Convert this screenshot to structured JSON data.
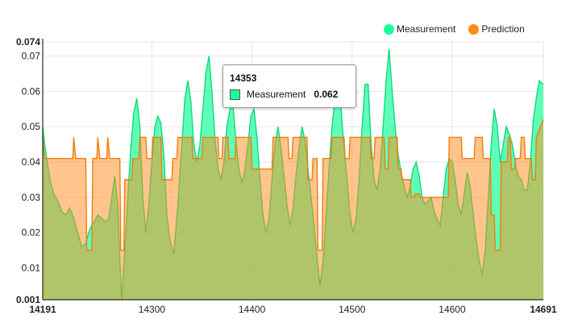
{
  "colors": {
    "measurement": "#1CFF9A",
    "prediction": "#FF8C1A",
    "grid": "#e6e6e6",
    "axis": "#000000"
  },
  "legend": {
    "measurement": "Measurement",
    "prediction": "Prediction"
  },
  "tooltip": {
    "title": "14353",
    "label": "Measurement",
    "value": "0.062"
  },
  "chart_data": {
    "type": "area",
    "xlim": [
      14191,
      14691
    ],
    "ylim": [
      0.001,
      0.074
    ],
    "x_ticks": [
      14191,
      14300,
      14400,
      14500,
      14600,
      14691
    ],
    "y_ticks": [
      0.001,
      0.01,
      0.02,
      0.03,
      0.04,
      0.05,
      0.06,
      0.07,
      0.074
    ],
    "y_tick_labels": [
      "0.001",
      "0.01",
      "0.02",
      "0.03",
      "0.04",
      "0.05",
      "0.06",
      "0.07",
      "0.074"
    ],
    "grid": true,
    "legend_position": "top-right",
    "series": [
      {
        "name": "Measurement",
        "points": [
          [
            14191,
            0.05
          ],
          [
            14193,
            0.045
          ],
          [
            14196,
            0.039
          ],
          [
            14199,
            0.034
          ],
          [
            14202,
            0.031
          ],
          [
            14206,
            0.029
          ],
          [
            14210,
            0.026
          ],
          [
            14214,
            0.025
          ],
          [
            14218,
            0.027
          ],
          [
            14222,
            0.024
          ],
          [
            14226,
            0.02
          ],
          [
            14230,
            0.016
          ],
          [
            14234,
            0.017
          ],
          [
            14238,
            0.021
          ],
          [
            14242,
            0.023
          ],
          [
            14246,
            0.025
          ],
          [
            14250,
            0.024
          ],
          [
            14254,
            0.023
          ],
          [
            14257,
            0.024
          ],
          [
            14260,
            0.03
          ],
          [
            14263,
            0.036
          ],
          [
            14266,
            0.028
          ],
          [
            14268,
            0.012
          ],
          [
            14270,
            0.001
          ],
          [
            14273,
            0.015
          ],
          [
            14276,
            0.03
          ],
          [
            14279,
            0.044
          ],
          [
            14282,
            0.054
          ],
          [
            14285,
            0.058
          ],
          [
            14288,
            0.05
          ],
          [
            14291,
            0.03
          ],
          [
            14294,
            0.02
          ],
          [
            14297,
            0.028
          ],
          [
            14300,
            0.04
          ],
          [
            14303,
            0.05
          ],
          [
            14306,
            0.053
          ],
          [
            14309,
            0.051
          ],
          [
            14312,
            0.042
          ],
          [
            14315,
            0.025
          ],
          [
            14318,
            0.018
          ],
          [
            14322,
            0.014
          ],
          [
            14326,
            0.028
          ],
          [
            14330,
            0.045
          ],
          [
            14333,
            0.058
          ],
          [
            14336,
            0.063
          ],
          [
            14339,
            0.057
          ],
          [
            14342,
            0.045
          ],
          [
            14345,
            0.04
          ],
          [
            14348,
            0.045
          ],
          [
            14351,
            0.055
          ],
          [
            14354,
            0.065
          ],
          [
            14357,
            0.07
          ],
          [
            14360,
            0.06
          ],
          [
            14363,
            0.047
          ],
          [
            14366,
            0.038
          ],
          [
            14369,
            0.035
          ],
          [
            14372,
            0.04
          ],
          [
            14375,
            0.05
          ],
          [
            14378,
            0.055
          ],
          [
            14381,
            0.056
          ],
          [
            14384,
            0.046
          ],
          [
            14387,
            0.038
          ],
          [
            14390,
            0.034
          ],
          [
            14393,
            0.038
          ],
          [
            14396,
            0.045
          ],
          [
            14399,
            0.053
          ],
          [
            14402,
            0.055
          ],
          [
            14405,
            0.047
          ],
          [
            14408,
            0.035
          ],
          [
            14411,
            0.025
          ],
          [
            14414,
            0.02
          ],
          [
            14417,
            0.024
          ],
          [
            14420,
            0.035
          ],
          [
            14423,
            0.045
          ],
          [
            14426,
            0.05
          ],
          [
            14429,
            0.044
          ],
          [
            14432,
            0.036
          ],
          [
            14435,
            0.028
          ],
          [
            14438,
            0.022
          ],
          [
            14441,
            0.027
          ],
          [
            14444,
            0.036
          ],
          [
            14447,
            0.044
          ],
          [
            14450,
            0.05
          ],
          [
            14453,
            0.046
          ],
          [
            14456,
            0.038
          ],
          [
            14459,
            0.03
          ],
          [
            14462,
            0.022
          ],
          [
            14465,
            0.013
          ],
          [
            14468,
            0.005
          ],
          [
            14471,
            0.012
          ],
          [
            14474,
            0.025
          ],
          [
            14477,
            0.038
          ],
          [
            14480,
            0.05
          ],
          [
            14483,
            0.058
          ],
          [
            14486,
            0.062
          ],
          [
            14489,
            0.055
          ],
          [
            14492,
            0.044
          ],
          [
            14495,
            0.035
          ],
          [
            14498,
            0.025
          ],
          [
            14501,
            0.02
          ],
          [
            14504,
            0.024
          ],
          [
            14507,
            0.035
          ],
          [
            14510,
            0.05
          ],
          [
            14513,
            0.062
          ],
          [
            14516,
            0.062
          ],
          [
            14519,
            0.045
          ],
          [
            14522,
            0.035
          ],
          [
            14525,
            0.032
          ],
          [
            14528,
            0.038
          ],
          [
            14531,
            0.05
          ],
          [
            14534,
            0.063
          ],
          [
            14537,
            0.072
          ],
          [
            14540,
            0.06
          ],
          [
            14543,
            0.05
          ],
          [
            14546,
            0.042
          ],
          [
            14549,
            0.037
          ],
          [
            14552,
            0.033
          ],
          [
            14555,
            0.03
          ],
          [
            14558,
            0.033
          ],
          [
            14561,
            0.038
          ],
          [
            14564,
            0.04
          ],
          [
            14567,
            0.036
          ],
          [
            14570,
            0.03
          ],
          [
            14573,
            0.028
          ],
          [
            14576,
            0.029
          ],
          [
            14579,
            0.03
          ],
          [
            14582,
            0.026
          ],
          [
            14585,
            0.024
          ],
          [
            14588,
            0.022
          ],
          [
            14591,
            0.03
          ],
          [
            14594,
            0.038
          ],
          [
            14597,
            0.041
          ],
          [
            14600,
            0.04
          ],
          [
            14603,
            0.035
          ],
          [
            14606,
            0.028
          ],
          [
            14609,
            0.025
          ],
          [
            14612,
            0.031
          ],
          [
            14615,
            0.037
          ],
          [
            14618,
            0.033
          ],
          [
            14621,
            0.025
          ],
          [
            14624,
            0.018
          ],
          [
            14627,
            0.012
          ],
          [
            14630,
            0.008
          ],
          [
            14633,
            0.015
          ],
          [
            14636,
            0.03
          ],
          [
            14639,
            0.045
          ],
          [
            14642,
            0.055
          ],
          [
            14645,
            0.05
          ],
          [
            14648,
            0.04
          ],
          [
            14651,
            0.045
          ],
          [
            14654,
            0.05
          ],
          [
            14657,
            0.048
          ],
          [
            14660,
            0.045
          ],
          [
            14663,
            0.04
          ],
          [
            14666,
            0.036
          ],
          [
            14669,
            0.035
          ],
          [
            14672,
            0.032
          ],
          [
            14675,
            0.032
          ],
          [
            14678,
            0.04
          ],
          [
            14681,
            0.052
          ],
          [
            14684,
            0.058
          ],
          [
            14687,
            0.063
          ],
          [
            14691,
            0.062
          ]
        ]
      },
      {
        "name": "Prediction",
        "points": [
          [
            14191,
            0.047
          ],
          [
            14193,
            0.041
          ],
          [
            14200,
            0.041
          ],
          [
            14221,
            0.041
          ],
          [
            14222,
            0.047
          ],
          [
            14224,
            0.041
          ],
          [
            14234,
            0.041
          ],
          [
            14235,
            0.015
          ],
          [
            14240,
            0.015
          ],
          [
            14241,
            0.041
          ],
          [
            14245,
            0.041
          ],
          [
            14246,
            0.047
          ],
          [
            14248,
            0.041
          ],
          [
            14255,
            0.041
          ],
          [
            14256,
            0.047
          ],
          [
            14258,
            0.041
          ],
          [
            14268,
            0.041
          ],
          [
            14269,
            0.015
          ],
          [
            14272,
            0.015
          ],
          [
            14273,
            0.035
          ],
          [
            14280,
            0.035
          ],
          [
            14281,
            0.041
          ],
          [
            14287,
            0.041
          ],
          [
            14288,
            0.047
          ],
          [
            14294,
            0.047
          ],
          [
            14295,
            0.041
          ],
          [
            14300,
            0.041
          ],
          [
            14301,
            0.047
          ],
          [
            14309,
            0.047
          ],
          [
            14310,
            0.035
          ],
          [
            14320,
            0.035
          ],
          [
            14321,
            0.041
          ],
          [
            14325,
            0.041
          ],
          [
            14326,
            0.047
          ],
          [
            14340,
            0.047
          ],
          [
            14341,
            0.041
          ],
          [
            14350,
            0.041
          ],
          [
            14351,
            0.047
          ],
          [
            14366,
            0.047
          ],
          [
            14367,
            0.041
          ],
          [
            14370,
            0.041
          ],
          [
            14371,
            0.047
          ],
          [
            14376,
            0.047
          ],
          [
            14377,
            0.041
          ],
          [
            14383,
            0.041
          ],
          [
            14384,
            0.047
          ],
          [
            14399,
            0.047
          ],
          [
            14400,
            0.038
          ],
          [
            14420,
            0.038
          ],
          [
            14421,
            0.047
          ],
          [
            14436,
            0.047
          ],
          [
            14437,
            0.041
          ],
          [
            14440,
            0.041
          ],
          [
            14441,
            0.047
          ],
          [
            14455,
            0.047
          ],
          [
            14456,
            0.035
          ],
          [
            14460,
            0.035
          ],
          [
            14461,
            0.041
          ],
          [
            14465,
            0.041
          ],
          [
            14466,
            0.015
          ],
          [
            14470,
            0.015
          ],
          [
            14471,
            0.041
          ],
          [
            14479,
            0.041
          ],
          [
            14480,
            0.047
          ],
          [
            14492,
            0.047
          ],
          [
            14493,
            0.041
          ],
          [
            14497,
            0.041
          ],
          [
            14498,
            0.047
          ],
          [
            14518,
            0.047
          ],
          [
            14519,
            0.041
          ],
          [
            14522,
            0.041
          ],
          [
            14523,
            0.047
          ],
          [
            14532,
            0.047
          ],
          [
            14533,
            0.038
          ],
          [
            14536,
            0.038
          ],
          [
            14537,
            0.047
          ],
          [
            14545,
            0.047
          ],
          [
            14546,
            0.038
          ],
          [
            14549,
            0.038
          ],
          [
            14550,
            0.035
          ],
          [
            14558,
            0.035
          ],
          [
            14559,
            0.03
          ],
          [
            14562,
            0.03
          ],
          [
            14563,
            0.031
          ],
          [
            14567,
            0.031
          ],
          [
            14568,
            0.03
          ],
          [
            14596,
            0.03
          ],
          [
            14597,
            0.047
          ],
          [
            14609,
            0.047
          ],
          [
            14610,
            0.041
          ],
          [
            14622,
            0.041
          ],
          [
            14623,
            0.047
          ],
          [
            14630,
            0.047
          ],
          [
            14631,
            0.041
          ],
          [
            14638,
            0.041
          ],
          [
            14639,
            0.025
          ],
          [
            14642,
            0.025
          ],
          [
            14643,
            0.015
          ],
          [
            14648,
            0.015
          ],
          [
            14649,
            0.04
          ],
          [
            14655,
            0.04
          ],
          [
            14656,
            0.047
          ],
          [
            14658,
            0.047
          ],
          [
            14659,
            0.038
          ],
          [
            14662,
            0.038
          ],
          [
            14663,
            0.041
          ],
          [
            14668,
            0.041
          ],
          [
            14669,
            0.047
          ],
          [
            14672,
            0.047
          ],
          [
            14673,
            0.041
          ],
          [
            14679,
            0.041
          ],
          [
            14680,
            0.035
          ],
          [
            14683,
            0.035
          ],
          [
            14684,
            0.047
          ],
          [
            14691,
            0.052
          ]
        ]
      }
    ]
  }
}
